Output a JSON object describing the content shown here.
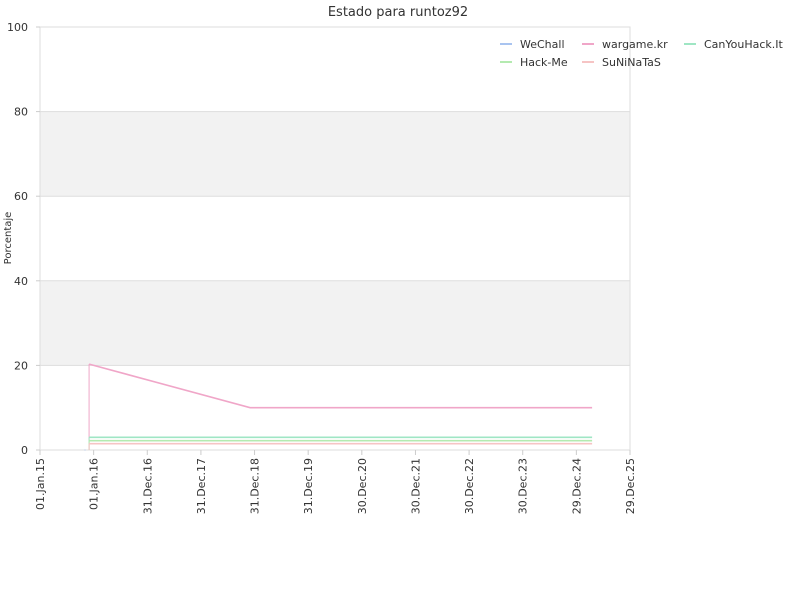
{
  "chart_data": {
    "type": "line",
    "title": "Estado para runtoz92",
    "xlabel": "",
    "ylabel": "Porcentaje",
    "ylim": [
      0,
      100
    ],
    "yticks": [
      0,
      20,
      40,
      60,
      80,
      100
    ],
    "xlim": [
      "2015-01-01",
      "2025-12-29"
    ],
    "xticks": [
      {
        "date": "2015-01-01",
        "label": "01.Jan.15"
      },
      {
        "date": "2016-01-01",
        "label": "01.Jan.16"
      },
      {
        "date": "2016-12-31",
        "label": "31.Dec.16"
      },
      {
        "date": "2017-12-31",
        "label": "31.Dec.17"
      },
      {
        "date": "2018-12-31",
        "label": "31.Dec.18"
      },
      {
        "date": "2019-12-31",
        "label": "31.Dec.19"
      },
      {
        "date": "2020-12-30",
        "label": "30.Dec.20"
      },
      {
        "date": "2021-12-30",
        "label": "30.Dec.21"
      },
      {
        "date": "2022-12-30",
        "label": "30.Dec.22"
      },
      {
        "date": "2023-12-30",
        "label": "30.Dec.23"
      },
      {
        "date": "2024-12-29",
        "label": "29.Dec.24"
      },
      {
        "date": "2025-12-29",
        "label": "29.Dec.25"
      }
    ],
    "grid": "horizontal",
    "alternating_bands": true,
    "legend_position": "top-right",
    "series": [
      {
        "name": "WeChall",
        "color": "#a9c4f0",
        "points": [
          {
            "x": "2015-11-01",
            "y": 0
          },
          {
            "x": "2015-11-05",
            "y": 0
          }
        ]
      },
      {
        "name": "wargame.kr",
        "color": "#f0a6c8",
        "points": [
          {
            "x": "2015-12-01",
            "y": 20.3
          },
          {
            "x": "2018-12-01",
            "y": 10
          },
          {
            "x": "2025-04-15",
            "y": 10
          }
        ]
      },
      {
        "name": "CanYouHack.It",
        "color": "#9fe6c4",
        "points": [
          {
            "x": "2015-12-01",
            "y": 3
          },
          {
            "x": "2025-04-15",
            "y": 3
          }
        ]
      },
      {
        "name": "Hack-Me",
        "color": "#b4eab0",
        "points": [
          {
            "x": "2015-12-01",
            "y": 2.2
          },
          {
            "x": "2025-04-15",
            "y": 2.2
          }
        ]
      },
      {
        "name": "SuNiNaTaS",
        "color": "#f6c4c4",
        "points": [
          {
            "x": "2015-12-01",
            "y": 1.5
          },
          {
            "x": "2025-04-15",
            "y": 1.5
          }
        ]
      }
    ]
  }
}
